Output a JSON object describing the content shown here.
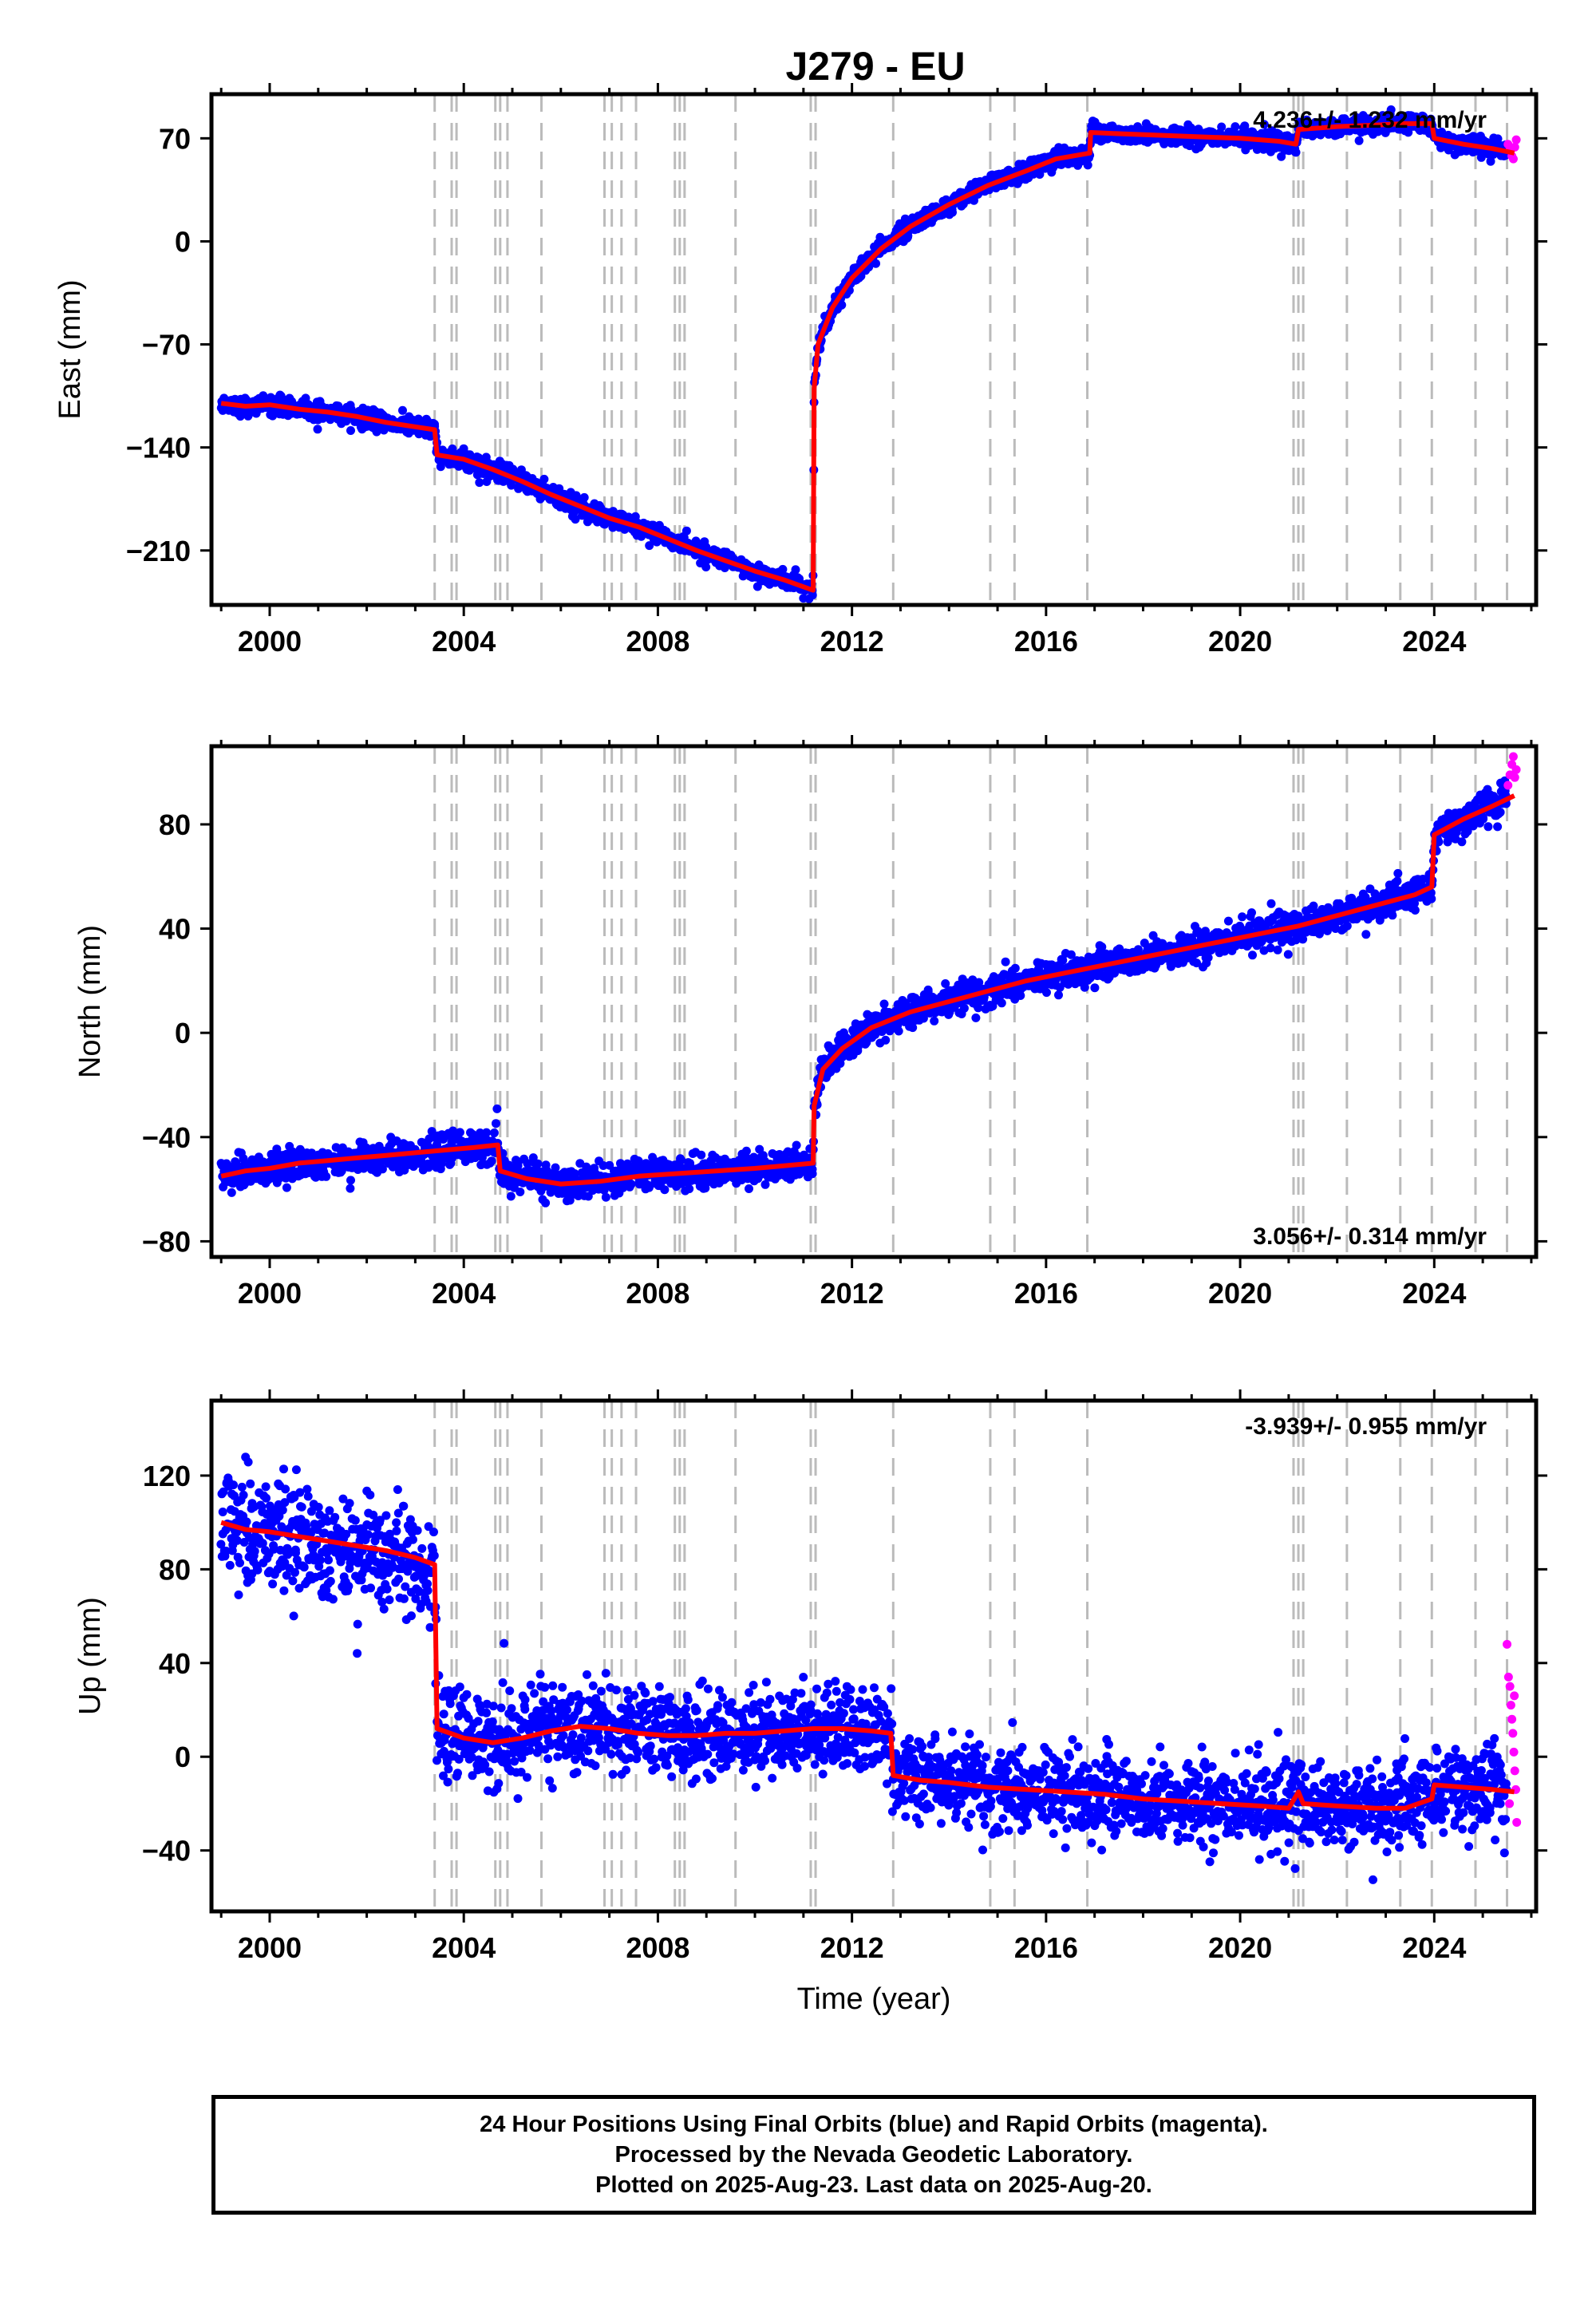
{
  "title": "J279 - EU",
  "caption": {
    "line1": "24 Hour Positions Using Final Orbits (blue) and Rapid Orbits (magenta).",
    "line2": "Processed by the Nevada Geodetic Laboratory.",
    "line3": "Plotted on 2025-Aug-23. Last data on 2025-Aug-20."
  },
  "colors": {
    "final_orbits": "#0000ff",
    "rapid_orbits": "#ff00ff",
    "model": "#ff0000",
    "event_lines": "#bbbbbb"
  },
  "chart_data": [
    {
      "type": "scatter",
      "ylabel": "East (mm)",
      "xlabel": "",
      "xlim": [
        1998.8,
        2026.1
      ],
      "ylim": [
        -247,
        100
      ],
      "xticks": [
        2000,
        2004,
        2008,
        2012,
        2016,
        2020,
        2024
      ],
      "yticks": [
        -210,
        -140,
        -70,
        0,
        70
      ],
      "rate": "4.236+/- 1.232 mm/yr",
      "rate_position": "top-right",
      "model_line": [
        [
          1999.0,
          -110
        ],
        [
          1999.5,
          -112
        ],
        [
          2000.0,
          -111
        ],
        [
          2000.6,
          -114
        ],
        [
          2001.2,
          -116
        ],
        [
          2001.8,
          -119
        ],
        [
          2002.4,
          -123
        ],
        [
          2003.0,
          -126
        ],
        [
          2003.4,
          -128
        ],
        [
          2003.45,
          -145
        ],
        [
          2004.0,
          -148
        ],
        [
          2004.6,
          -155
        ],
        [
          2005.2,
          -163
        ],
        [
          2005.8,
          -172
        ],
        [
          2006.4,
          -180
        ],
        [
          2007.0,
          -188
        ],
        [
          2007.6,
          -194
        ],
        [
          2008.2,
          -202
        ],
        [
          2008.8,
          -210
        ],
        [
          2009.4,
          -217
        ],
        [
          2010.0,
          -224
        ],
        [
          2010.6,
          -230
        ],
        [
          2011.2,
          -237
        ],
        [
          2011.22,
          -100
        ],
        [
          2011.3,
          -70
        ],
        [
          2011.6,
          -45
        ],
        [
          2012.0,
          -25
        ],
        [
          2012.6,
          -5
        ],
        [
          2013.2,
          10
        ],
        [
          2014.0,
          25
        ],
        [
          2014.8,
          38
        ],
        [
          2015.6,
          48
        ],
        [
          2016.2,
          56
        ],
        [
          2016.9,
          60
        ],
        [
          2016.92,
          74
        ],
        [
          2017.6,
          73
        ],
        [
          2018.4,
          72
        ],
        [
          2019.2,
          71
        ],
        [
          2020.0,
          70
        ],
        [
          2020.8,
          68
        ],
        [
          2021.15,
          66
        ],
        [
          2021.2,
          76
        ],
        [
          2022.0,
          78
        ],
        [
          2022.8,
          79
        ],
        [
          2023.4,
          80
        ],
        [
          2023.95,
          80
        ],
        [
          2024.0,
          70
        ],
        [
          2024.6,
          66
        ],
        [
          2025.2,
          63
        ],
        [
          2025.65,
          60
        ]
      ],
      "final_range": [
        1999.0,
        2025.5
      ],
      "rapid_points": [
        [
          2025.52,
          66
        ],
        [
          2025.56,
          62
        ],
        [
          2025.6,
          58
        ],
        [
          2025.63,
          56
        ],
        [
          2025.66,
          64
        ],
        [
          2025.69,
          69
        ]
      ]
    },
    {
      "type": "scatter",
      "ylabel": "North (mm)",
      "xlabel": "",
      "xlim": [
        1998.8,
        2026.1
      ],
      "ylim": [
        -86,
        110
      ],
      "xticks": [
        2000,
        2004,
        2008,
        2012,
        2016,
        2020,
        2024
      ],
      "yticks": [
        -80,
        -40,
        0,
        40,
        80
      ],
      "rate": "3.056+/- 0.314 mm/yr",
      "rate_position": "bottom-right",
      "model_line": [
        [
          1999.0,
          -55
        ],
        [
          1999.5,
          -53
        ],
        [
          2000.0,
          -52
        ],
        [
          2000.6,
          -50
        ],
        [
          2001.2,
          -49
        ],
        [
          2001.8,
          -48
        ],
        [
          2002.4,
          -47
        ],
        [
          2003.0,
          -46
        ],
        [
          2003.6,
          -45
        ],
        [
          2004.2,
          -44
        ],
        [
          2004.7,
          -43
        ],
        [
          2004.75,
          -53
        ],
        [
          2005.3,
          -56
        ],
        [
          2006.0,
          -58
        ],
        [
          2006.8,
          -57
        ],
        [
          2007.6,
          -55
        ],
        [
          2008.4,
          -54
        ],
        [
          2009.2,
          -53
        ],
        [
          2010.0,
          -52
        ],
        [
          2010.6,
          -51
        ],
        [
          2011.2,
          -50
        ],
        [
          2011.22,
          -28
        ],
        [
          2011.4,
          -14
        ],
        [
          2011.8,
          -6
        ],
        [
          2012.4,
          2
        ],
        [
          2013.2,
          8
        ],
        [
          2014.0,
          12
        ],
        [
          2014.8,
          16
        ],
        [
          2015.6,
          20
        ],
        [
          2016.4,
          23
        ],
        [
          2017.2,
          26
        ],
        [
          2018.0,
          29
        ],
        [
          2018.8,
          32
        ],
        [
          2019.6,
          35
        ],
        [
          2020.4,
          38
        ],
        [
          2021.2,
          41
        ],
        [
          2022.0,
          45
        ],
        [
          2022.8,
          49
        ],
        [
          2023.6,
          53
        ],
        [
          2023.95,
          56
        ],
        [
          2024.0,
          76
        ],
        [
          2024.6,
          82
        ],
        [
          2025.2,
          87
        ],
        [
          2025.65,
          91
        ]
      ],
      "final_range": [
        1999.0,
        2025.5
      ],
      "rapid_points": [
        [
          2025.52,
          95
        ],
        [
          2025.56,
          99
        ],
        [
          2025.6,
          103
        ],
        [
          2025.63,
          106
        ],
        [
          2025.66,
          98
        ],
        [
          2025.69,
          101
        ]
      ]
    },
    {
      "type": "scatter",
      "ylabel": "Up (mm)",
      "xlabel": "Time (year)",
      "xlim": [
        1998.8,
        2026.1
      ],
      "ylim": [
        -66,
        152
      ],
      "xticks": [
        2000,
        2004,
        2008,
        2012,
        2016,
        2020,
        2024
      ],
      "yticks": [
        -40,
        0,
        40,
        80,
        120
      ],
      "rate": "-3.939+/- 0.955 mm/yr",
      "rate_position": "top-right",
      "model_line": [
        [
          1999.0,
          100
        ],
        [
          1999.5,
          97
        ],
        [
          2000.0,
          96
        ],
        [
          2000.6,
          94
        ],
        [
          2001.2,
          92
        ],
        [
          2001.8,
          90
        ],
        [
          2002.4,
          88
        ],
        [
          2003.0,
          85
        ],
        [
          2003.4,
          82
        ],
        [
          2003.45,
          12
        ],
        [
          2004.0,
          8
        ],
        [
          2004.6,
          6
        ],
        [
          2005.2,
          8
        ],
        [
          2005.8,
          11
        ],
        [
          2006.4,
          13
        ],
        [
          2007.0,
          12
        ],
        [
          2007.6,
          10
        ],
        [
          2008.2,
          9
        ],
        [
          2008.8,
          9
        ],
        [
          2009.4,
          10
        ],
        [
          2010.0,
          10
        ],
        [
          2010.6,
          11
        ],
        [
          2011.2,
          12
        ],
        [
          2011.8,
          12
        ],
        [
          2012.4,
          11
        ],
        [
          2012.8,
          10
        ],
        [
          2012.85,
          -8
        ],
        [
          2013.4,
          -10
        ],
        [
          2014.0,
          -11
        ],
        [
          2014.8,
          -13
        ],
        [
          2015.6,
          -14
        ],
        [
          2016.4,
          -15
        ],
        [
          2017.2,
          -16
        ],
        [
          2018.0,
          -18
        ],
        [
          2018.8,
          -19
        ],
        [
          2019.6,
          -20
        ],
        [
          2020.4,
          -21
        ],
        [
          2021.0,
          -22
        ],
        [
          2021.2,
          -15
        ],
        [
          2021.3,
          -20
        ],
        [
          2022.0,
          -21
        ],
        [
          2022.8,
          -22
        ],
        [
          2023.4,
          -22
        ],
        [
          2023.95,
          -18
        ],
        [
          2024.0,
          -12
        ],
        [
          2024.6,
          -13
        ],
        [
          2025.2,
          -14
        ],
        [
          2025.65,
          -15
        ]
      ],
      "final_range": [
        1999.0,
        2025.5
      ],
      "rapid_points": [
        [
          2025.5,
          48
        ],
        [
          2025.53,
          34
        ],
        [
          2025.56,
          30
        ],
        [
          2025.58,
          22
        ],
        [
          2025.6,
          16
        ],
        [
          2025.62,
          10
        ],
        [
          2025.64,
          2
        ],
        [
          2025.66,
          -6
        ],
        [
          2025.68,
          -14
        ],
        [
          2025.7,
          -28
        ],
        [
          2025.55,
          -20
        ],
        [
          2025.65,
          26
        ]
      ]
    }
  ],
  "event_lines": [
    2003.4,
    2003.75,
    2003.85,
    2004.65,
    2004.75,
    2004.9,
    2005.6,
    2006.9,
    2007.05,
    2007.25,
    2007.55,
    2008.35,
    2008.45,
    2008.55,
    2009.6,
    2011.15,
    2011.25,
    2012.85,
    2014.85,
    2015.35,
    2016.85,
    2021.1,
    2021.2,
    2021.3,
    2022.2,
    2023.3,
    2023.95,
    2024.85,
    2025.5
  ]
}
